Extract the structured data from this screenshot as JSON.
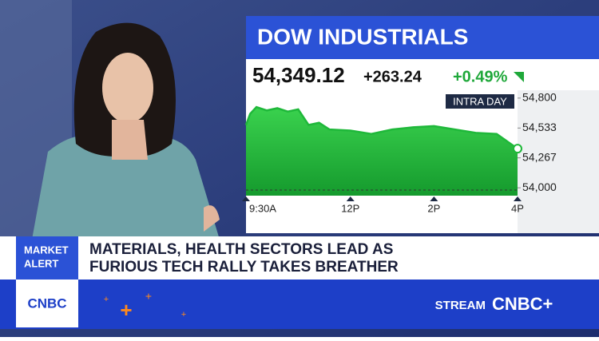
{
  "panel_title": "DOW INDUSTRIALS",
  "quote": {
    "last": "54,349.12",
    "change": "+263.24",
    "change_pct": "+0.49%"
  },
  "chart_data": {
    "type": "line",
    "badge": "INTRA DAY",
    "x": [
      9.5,
      9.6,
      9.75,
      10.0,
      10.25,
      10.5,
      10.75,
      11.0,
      11.25,
      11.5,
      12.0,
      12.5,
      13.0,
      13.5,
      14.0,
      14.5,
      15.0,
      15.5,
      16.0
    ],
    "series": [
      {
        "name": "DOW INDUSTRIALS",
        "color": "#1fb83a",
        "values": [
          54560,
          54660,
          54720,
          54690,
          54710,
          54680,
          54700,
          54560,
          54580,
          54520,
          54510,
          54480,
          54520,
          54540,
          54550,
          54520,
          54490,
          54480,
          54349.12
        ]
      }
    ],
    "xlim": [
      9.5,
      16
    ],
    "xticks": [
      {
        "value": 9.5,
        "label": "9:30A"
      },
      {
        "value": 12,
        "label": "12P"
      },
      {
        "value": 14,
        "label": "2P"
      },
      {
        "value": 16,
        "label": "4P"
      }
    ],
    "ylim": [
      53930,
      54870
    ],
    "yticks": [
      {
        "value": 54800,
        "label": "54,800"
      },
      {
        "value": 54533,
        "label": "54,533"
      },
      {
        "value": 54267,
        "label": "54,267"
      },
      {
        "value": 54000,
        "label": "54,000"
      }
    ]
  },
  "lower_third": {
    "tag": [
      "MARKET",
      "ALERT"
    ],
    "headline": [
      "MATERIALS, HEALTH SECTORS LEAD AS",
      "FURIOUS TECH RALLY TAKES BREATHER"
    ],
    "logo": "CNBC",
    "stream": "STREAM",
    "stream_logo": "CNBC+"
  }
}
